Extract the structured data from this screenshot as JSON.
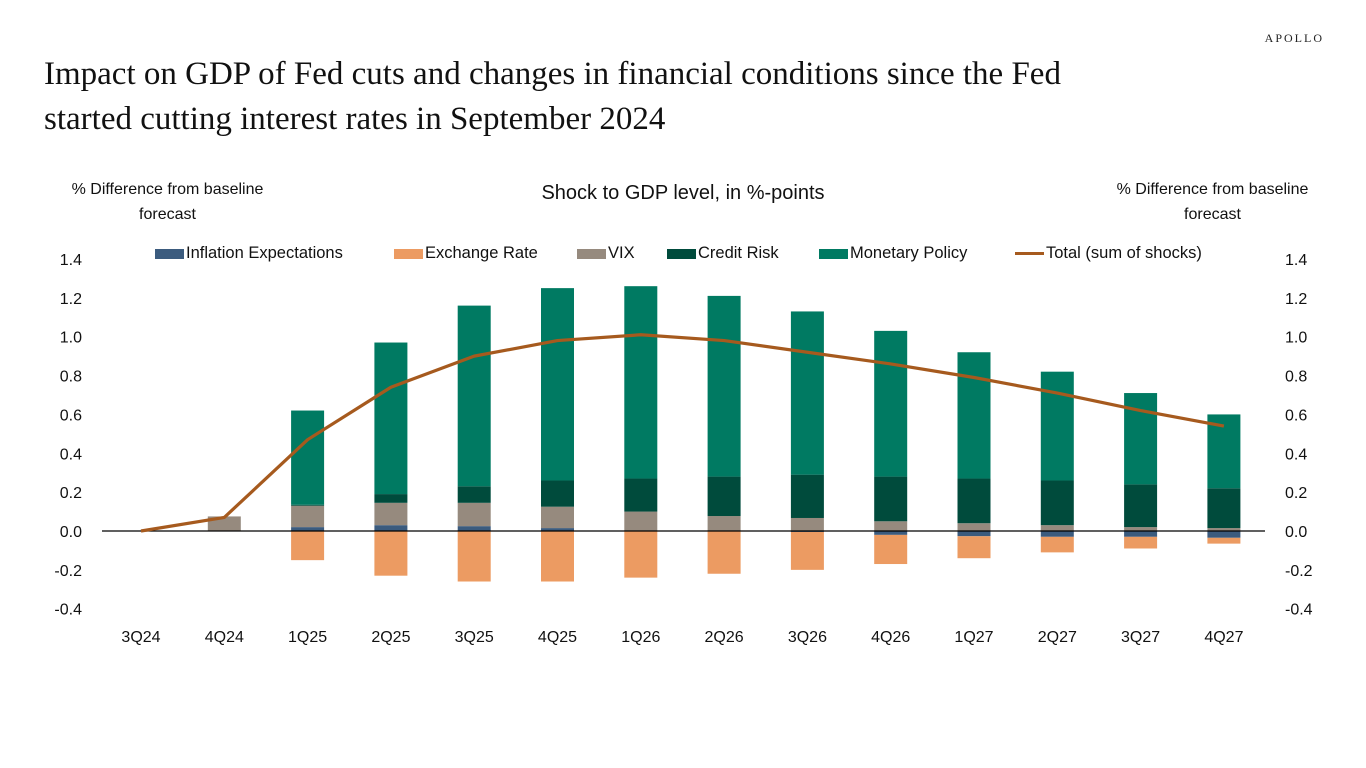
{
  "brand": "APOLLO",
  "title_line1": "Impact on GDP of Fed cuts and changes in financial conditions since the Fed",
  "title_line2": "started cutting interest rates in September 2024",
  "chart_data": {
    "type": "bar",
    "stacked": true,
    "title": "Shock to GDP level, in %-points",
    "ylabel_left_line1": "% Difference from baseline",
    "ylabel_left_line2": "forecast",
    "ylabel_right_line1": "% Difference from baseline",
    "ylabel_right_line2": "forecast",
    "xlabel": "",
    "ylim": [
      -0.4,
      1.4
    ],
    "yticks": [
      1.4,
      1.2,
      1.0,
      0.8,
      0.6,
      0.4,
      0.2,
      0.0,
      -0.2,
      -0.4
    ],
    "ytick_labels": [
      "1.4",
      "1.2",
      "1.0",
      "0.8",
      "0.6",
      "0.4",
      "0.2",
      "0.0",
      "-0.2",
      "-0.4"
    ],
    "grid": false,
    "legend_position": "top",
    "categories": [
      "3Q24",
      "4Q24",
      "1Q25",
      "2Q25",
      "3Q25",
      "4Q25",
      "1Q26",
      "2Q26",
      "3Q26",
      "4Q26",
      "1Q27",
      "2Q27",
      "3Q27",
      "4Q27"
    ],
    "series": [
      {
        "name": "Inflation Expectations",
        "color": "#3B5B7E",
        "values": [
          0.0,
          0.0,
          0.02,
          0.03,
          0.025,
          0.015,
          0.0,
          0.0,
          -0.005,
          -0.02,
          -0.027,
          -0.03,
          -0.03,
          -0.035
        ]
      },
      {
        "name": "Exchange Rate",
        "color": "#EC9B62",
        "values": [
          0.0,
          0.0,
          -0.15,
          -0.23,
          -0.26,
          -0.26,
          -0.24,
          -0.22,
          -0.195,
          -0.15,
          -0.113,
          -0.08,
          -0.06,
          -0.03
        ]
      },
      {
        "name": "VIX",
        "color": "#968A7E",
        "values": [
          0.0,
          0.075,
          0.11,
          0.115,
          0.12,
          0.11,
          0.1,
          0.077,
          0.067,
          0.05,
          0.04,
          0.03,
          0.02,
          0.015
        ]
      },
      {
        "name": "Credit Risk",
        "color": "#004B3C",
        "values": [
          0.0,
          0.0,
          0.005,
          0.045,
          0.085,
          0.135,
          0.17,
          0.203,
          0.223,
          0.23,
          0.23,
          0.23,
          0.22,
          0.205
        ]
      },
      {
        "name": "Monetary Policy",
        "color": "#007A62",
        "values": [
          0.0,
          0.0,
          0.485,
          0.78,
          0.93,
          0.99,
          0.99,
          0.93,
          0.84,
          0.75,
          0.65,
          0.56,
          0.47,
          0.38
        ]
      }
    ],
    "line_series": {
      "name": "Total (sum of shocks)",
      "color": "#A65A1E",
      "values": [
        0.0,
        0.07,
        0.47,
        0.74,
        0.9,
        0.98,
        1.01,
        0.98,
        0.92,
        0.86,
        0.79,
        0.71,
        0.62,
        0.54
      ]
    }
  }
}
